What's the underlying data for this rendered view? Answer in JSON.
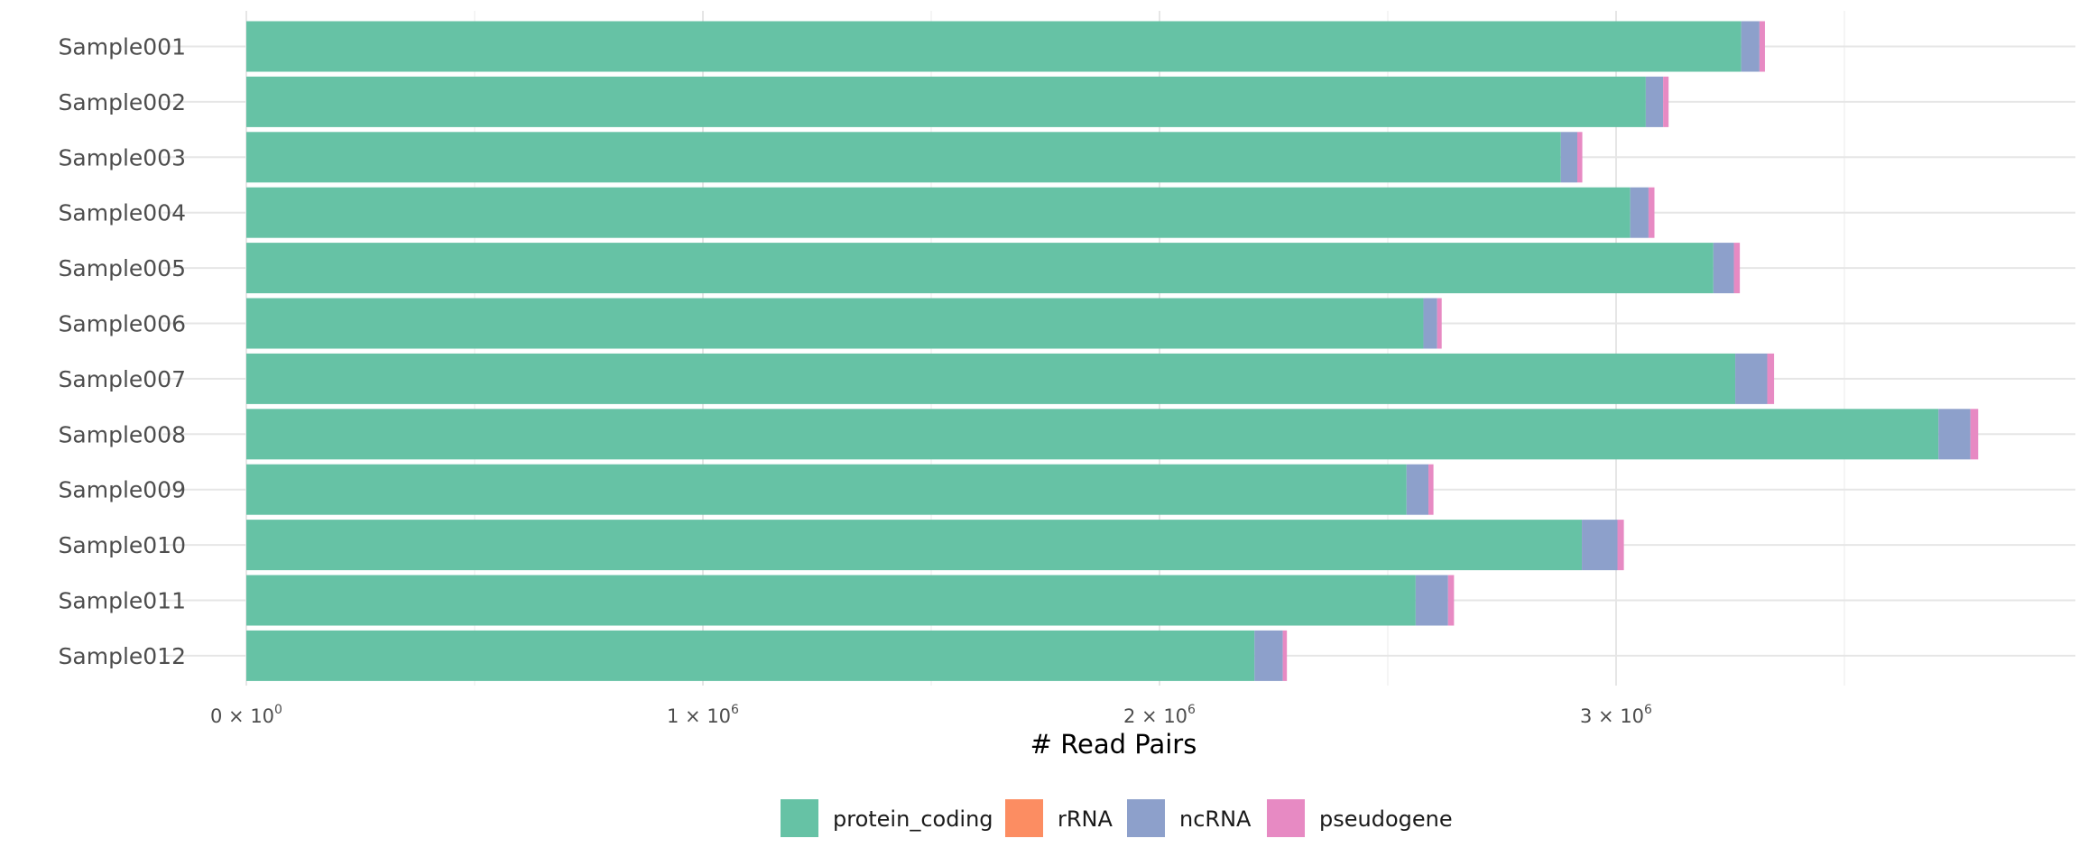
{
  "chart_data": {
    "type": "bar",
    "orientation": "horizontal",
    "stacked": true,
    "title": "",
    "xlabel": "# Read Pairs",
    "ylabel": "",
    "xlim": [
      0,
      3800000
    ],
    "grid": true,
    "legend_position": "bottom",
    "categories": [
      "Sample001",
      "Sample002",
      "Sample003",
      "Sample004",
      "Sample005",
      "Sample006",
      "Sample007",
      "Sample008",
      "Sample009",
      "Sample010",
      "Sample011",
      "Sample012"
    ],
    "x_ticks": [
      {
        "value": 0,
        "base": "0 × 10",
        "exponent": "0"
      },
      {
        "value": 1000000,
        "base": "1 × 10",
        "exponent": "6"
      },
      {
        "value": 2000000,
        "base": "2 × 10",
        "exponent": "6"
      },
      {
        "value": 3000000,
        "base": "3 × 10",
        "exponent": "6"
      }
    ],
    "series": [
      {
        "name": "protein_coding",
        "color": "#66c2a5",
        "values": [
          3274000,
          3065000,
          2879000,
          3031000,
          3213000,
          2578000,
          3261000,
          3706000,
          2541000,
          2925000,
          2561000,
          2208000
        ]
      },
      {
        "name": "rRNA",
        "color": "#fc8d62",
        "values": [
          0,
          0,
          0,
          0,
          0,
          0,
          0,
          0,
          0,
          0,
          0,
          0
        ]
      },
      {
        "name": "ncRNA",
        "color": "#8da0cb",
        "values": [
          40000,
          38000,
          36000,
          40000,
          45000,
          30000,
          70000,
          70000,
          48000,
          78000,
          71000,
          62000
        ]
      },
      {
        "name": "pseudogene",
        "color": "#e78ac3",
        "values": [
          12000,
          12000,
          11000,
          13000,
          13000,
          10000,
          15000,
          17000,
          11000,
          14000,
          13000,
          9000
        ]
      }
    ]
  }
}
